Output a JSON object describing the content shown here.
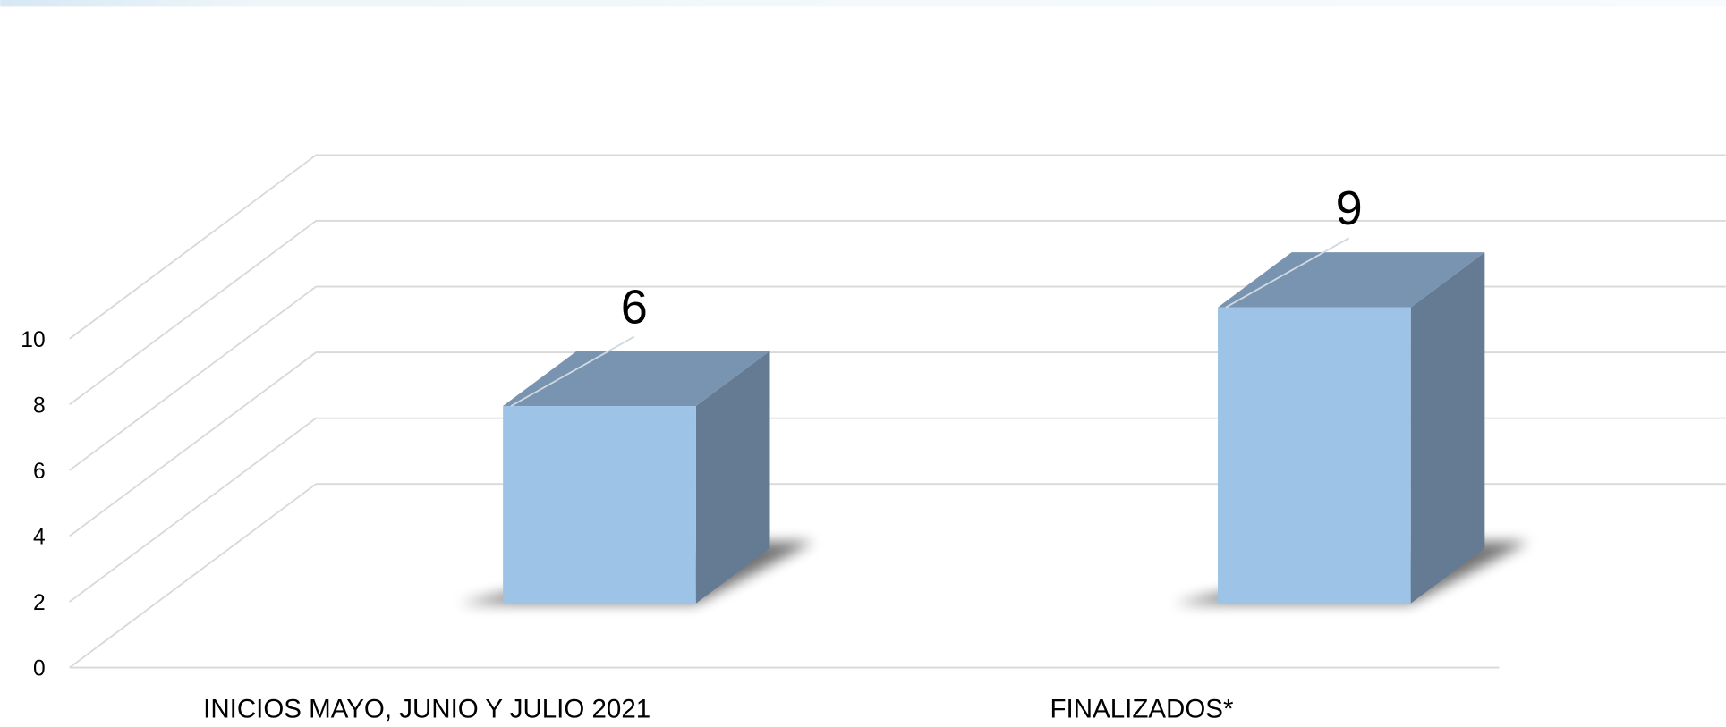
{
  "chart_data": {
    "type": "bar3d",
    "categories": [
      "INICIOS MAYO, JUNIO Y JULIO 2021",
      "FINALIZADOS*"
    ],
    "values": [
      6,
      9
    ],
    "color": "#9dc3e6",
    "top_color": "#7994b0",
    "side_color": "#657b93",
    "ylim": [
      0,
      10
    ],
    "yticks": [
      0,
      2,
      4,
      6,
      8,
      10
    ],
    "grid": true
  }
}
